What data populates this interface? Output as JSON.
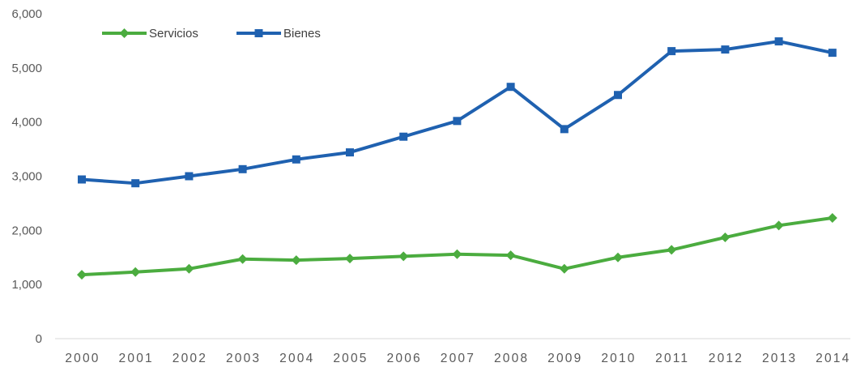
{
  "chart_data": {
    "type": "line",
    "title": "",
    "xlabel": "",
    "ylabel": "",
    "ylim": [
      0,
      6000
    ],
    "grid": false,
    "legend_position": "top-left",
    "y_ticks": [
      {
        "value": 0,
        "label": "0"
      },
      {
        "value": 1000,
        "label": "1,000"
      },
      {
        "value": 2000,
        "label": "2,000"
      },
      {
        "value": 3000,
        "label": "3,000"
      },
      {
        "value": 4000,
        "label": "4,000"
      },
      {
        "value": 5000,
        "label": "5,000"
      },
      {
        "value": 6000,
        "label": "6,000"
      }
    ],
    "categories": [
      "2000",
      "2001",
      "2002",
      "2003",
      "2004",
      "2005",
      "2006",
      "2007",
      "2008",
      "2009",
      "2010",
      "2011",
      "2012",
      "2013",
      "2014"
    ],
    "series": [
      {
        "name": "Servicios",
        "color": "#4bac3f",
        "marker": "diamond",
        "values": [
          1180,
          1230,
          1290,
          1470,
          1450,
          1480,
          1520,
          1560,
          1540,
          1290,
          1500,
          1640,
          1870,
          2090,
          2230
        ]
      },
      {
        "name": "Bienes",
        "color": "#1f61b0",
        "marker": "square",
        "values": [
          2940,
          2870,
          3000,
          3130,
          3310,
          3440,
          3730,
          4020,
          4650,
          3870,
          4500,
          5310,
          5340,
          5490,
          5280
        ]
      }
    ]
  }
}
